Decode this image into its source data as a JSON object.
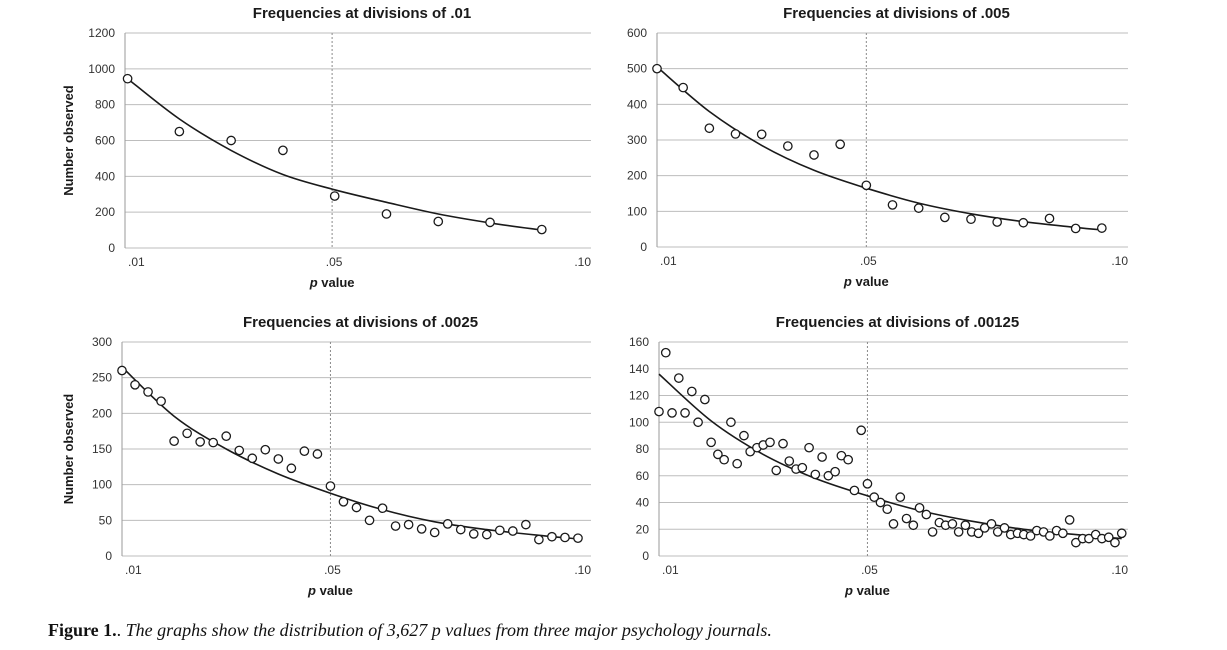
{
  "chart_data": [
    {
      "type": "scatter",
      "title": "Frequencies at divisions of .01",
      "ylabel": "Number observed",
      "xlabel_italic": "p",
      "xlabel_rest": " value",
      "ylim": [
        0,
        1200
      ],
      "yticks": [
        0,
        200,
        400,
        600,
        800,
        1000,
        1200
      ],
      "xlim": [
        0.01,
        0.1
      ],
      "xticks": [
        {
          "value": 0.01,
          "label": ".01"
        },
        {
          "value": 0.05,
          "label": ".05"
        },
        {
          "value": 0.1,
          "label": ".10"
        }
      ],
      "reference_x": 0.05,
      "points": [
        {
          "x": 0.0105,
          "y": 945
        },
        {
          "x": 0.0205,
          "y": 650
        },
        {
          "x": 0.0305,
          "y": 600
        },
        {
          "x": 0.0405,
          "y": 545
        },
        {
          "x": 0.0505,
          "y": 290
        },
        {
          "x": 0.0605,
          "y": 190
        },
        {
          "x": 0.0705,
          "y": 148
        },
        {
          "x": 0.0805,
          "y": 143
        },
        {
          "x": 0.0905,
          "y": 103
        }
      ],
      "fit": [
        {
          "x": 0.0105,
          "y": 945
        },
        {
          "x": 0.0205,
          "y": 720
        },
        {
          "x": 0.0305,
          "y": 545
        },
        {
          "x": 0.0405,
          "y": 410
        },
        {
          "x": 0.0505,
          "y": 325
        },
        {
          "x": 0.0605,
          "y": 255
        },
        {
          "x": 0.0705,
          "y": 190
        },
        {
          "x": 0.0805,
          "y": 140
        },
        {
          "x": 0.0905,
          "y": 100
        }
      ]
    },
    {
      "type": "scatter",
      "title": "Frequencies at divisions of .005",
      "ylabel": "",
      "xlabel_italic": "p",
      "xlabel_rest": " value",
      "ylim": [
        0,
        600
      ],
      "yticks": [
        0,
        100,
        200,
        300,
        400,
        500,
        600
      ],
      "xlim": [
        0.01,
        0.1
      ],
      "xticks": [
        {
          "value": 0.01,
          "label": ".01"
        },
        {
          "value": 0.05,
          "label": ".05"
        },
        {
          "value": 0.1,
          "label": ".10"
        }
      ],
      "reference_x": 0.05,
      "points": [
        {
          "x": 0.01,
          "y": 500
        },
        {
          "x": 0.015,
          "y": 447
        },
        {
          "x": 0.02,
          "y": 333
        },
        {
          "x": 0.025,
          "y": 317
        },
        {
          "x": 0.03,
          "y": 316
        },
        {
          "x": 0.035,
          "y": 283
        },
        {
          "x": 0.04,
          "y": 258
        },
        {
          "x": 0.045,
          "y": 288
        },
        {
          "x": 0.05,
          "y": 173
        },
        {
          "x": 0.055,
          "y": 118
        },
        {
          "x": 0.06,
          "y": 109
        },
        {
          "x": 0.065,
          "y": 83
        },
        {
          "x": 0.07,
          "y": 78
        },
        {
          "x": 0.075,
          "y": 70
        },
        {
          "x": 0.08,
          "y": 68
        },
        {
          "x": 0.085,
          "y": 80
        },
        {
          "x": 0.09,
          "y": 52
        },
        {
          "x": 0.095,
          "y": 53
        }
      ],
      "fit": [
        {
          "x": 0.01,
          "y": 505
        },
        {
          "x": 0.02,
          "y": 380
        },
        {
          "x": 0.03,
          "y": 285
        },
        {
          "x": 0.04,
          "y": 215
        },
        {
          "x": 0.05,
          "y": 165
        },
        {
          "x": 0.06,
          "y": 123
        },
        {
          "x": 0.07,
          "y": 93
        },
        {
          "x": 0.08,
          "y": 71
        },
        {
          "x": 0.09,
          "y": 55
        },
        {
          "x": 0.095,
          "y": 48
        }
      ]
    },
    {
      "type": "scatter",
      "title": "Frequencies at divisions of .0025",
      "ylabel": "Number observed",
      "xlabel_italic": "p",
      "xlabel_rest": " value",
      "ylim": [
        0,
        300
      ],
      "yticks": [
        0,
        50,
        100,
        150,
        200,
        250,
        300
      ],
      "xlim": [
        0.01,
        0.1
      ],
      "xticks": [
        {
          "value": 0.01,
          "label": ".01"
        },
        {
          "value": 0.05,
          "label": ".05"
        },
        {
          "value": 0.1,
          "label": ".10"
        }
      ],
      "reference_x": 0.05,
      "points": [
        {
          "x": 0.01,
          "y": 260
        },
        {
          "x": 0.0125,
          "y": 240
        },
        {
          "x": 0.015,
          "y": 230
        },
        {
          "x": 0.0175,
          "y": 217
        },
        {
          "x": 0.02,
          "y": 161
        },
        {
          "x": 0.0225,
          "y": 172
        },
        {
          "x": 0.025,
          "y": 160
        },
        {
          "x": 0.0275,
          "y": 159
        },
        {
          "x": 0.03,
          "y": 168
        },
        {
          "x": 0.0325,
          "y": 148
        },
        {
          "x": 0.035,
          "y": 137
        },
        {
          "x": 0.0375,
          "y": 149
        },
        {
          "x": 0.04,
          "y": 136
        },
        {
          "x": 0.0425,
          "y": 123
        },
        {
          "x": 0.045,
          "y": 147
        },
        {
          "x": 0.0475,
          "y": 143
        },
        {
          "x": 0.05,
          "y": 98
        },
        {
          "x": 0.0525,
          "y": 76
        },
        {
          "x": 0.055,
          "y": 68
        },
        {
          "x": 0.0575,
          "y": 50
        },
        {
          "x": 0.06,
          "y": 67
        },
        {
          "x": 0.0625,
          "y": 42
        },
        {
          "x": 0.065,
          "y": 44
        },
        {
          "x": 0.0675,
          "y": 38
        },
        {
          "x": 0.07,
          "y": 33
        },
        {
          "x": 0.0725,
          "y": 45
        },
        {
          "x": 0.075,
          "y": 37
        },
        {
          "x": 0.0775,
          "y": 31
        },
        {
          "x": 0.08,
          "y": 30
        },
        {
          "x": 0.0825,
          "y": 36
        },
        {
          "x": 0.085,
          "y": 35
        },
        {
          "x": 0.0875,
          "y": 44
        },
        {
          "x": 0.09,
          "y": 23
        },
        {
          "x": 0.0925,
          "y": 27
        },
        {
          "x": 0.095,
          "y": 26
        },
        {
          "x": 0.0975,
          "y": 25
        }
      ],
      "fit": [
        {
          "x": 0.01,
          "y": 265
        },
        {
          "x": 0.02,
          "y": 196
        },
        {
          "x": 0.03,
          "y": 150
        },
        {
          "x": 0.04,
          "y": 115
        },
        {
          "x": 0.05,
          "y": 88
        },
        {
          "x": 0.06,
          "y": 65
        },
        {
          "x": 0.07,
          "y": 48
        },
        {
          "x": 0.08,
          "y": 37
        },
        {
          "x": 0.09,
          "y": 29
        },
        {
          "x": 0.0975,
          "y": 24
        }
      ]
    },
    {
      "type": "scatter",
      "title": "Frequencies at divisions of .00125",
      "ylabel": "",
      "xlabel_italic": "p",
      "xlabel_rest": " value",
      "ylim": [
        0,
        160
      ],
      "yticks": [
        0,
        20,
        40,
        60,
        80,
        100,
        120,
        140,
        160
      ],
      "xlim": [
        0.01,
        0.1
      ],
      "xticks": [
        {
          "value": 0.01,
          "label": ".01"
        },
        {
          "value": 0.05,
          "label": ".05"
        },
        {
          "value": 0.1,
          "label": ".10"
        }
      ],
      "reference_x": 0.05,
      "points": [
        {
          "x": 0.01,
          "y": 108
        },
        {
          "x": 0.0113,
          "y": 152
        },
        {
          "x": 0.0125,
          "y": 107
        },
        {
          "x": 0.0138,
          "y": 133
        },
        {
          "x": 0.015,
          "y": 107
        },
        {
          "x": 0.0163,
          "y": 123
        },
        {
          "x": 0.0175,
          "y": 100
        },
        {
          "x": 0.0188,
          "y": 117
        },
        {
          "x": 0.02,
          "y": 85
        },
        {
          "x": 0.0213,
          "y": 76
        },
        {
          "x": 0.0225,
          "y": 72
        },
        {
          "x": 0.0238,
          "y": 100
        },
        {
          "x": 0.025,
          "y": 69
        },
        {
          "x": 0.0263,
          "y": 90
        },
        {
          "x": 0.0275,
          "y": 78
        },
        {
          "x": 0.0288,
          "y": 81
        },
        {
          "x": 0.03,
          "y": 83
        },
        {
          "x": 0.0313,
          "y": 85
        },
        {
          "x": 0.0325,
          "y": 64
        },
        {
          "x": 0.0338,
          "y": 84
        },
        {
          "x": 0.035,
          "y": 71
        },
        {
          "x": 0.0363,
          "y": 65
        },
        {
          "x": 0.0375,
          "y": 66
        },
        {
          "x": 0.0388,
          "y": 81
        },
        {
          "x": 0.04,
          "y": 61
        },
        {
          "x": 0.0413,
          "y": 74
        },
        {
          "x": 0.0425,
          "y": 60
        },
        {
          "x": 0.0438,
          "y": 63
        },
        {
          "x": 0.045,
          "y": 75
        },
        {
          "x": 0.0463,
          "y": 72
        },
        {
          "x": 0.0475,
          "y": 49
        },
        {
          "x": 0.0488,
          "y": 94
        },
        {
          "x": 0.05,
          "y": 54
        },
        {
          "x": 0.0513,
          "y": 44
        },
        {
          "x": 0.0525,
          "y": 40
        },
        {
          "x": 0.0538,
          "y": 35
        },
        {
          "x": 0.055,
          "y": 24
        },
        {
          "x": 0.0563,
          "y": 44
        },
        {
          "x": 0.0575,
          "y": 28
        },
        {
          "x": 0.0588,
          "y": 23
        },
        {
          "x": 0.06,
          "y": 36
        },
        {
          "x": 0.0613,
          "y": 31
        },
        {
          "x": 0.0625,
          "y": 18
        },
        {
          "x": 0.0638,
          "y": 25
        },
        {
          "x": 0.065,
          "y": 23
        },
        {
          "x": 0.0663,
          "y": 24
        },
        {
          "x": 0.0675,
          "y": 18
        },
        {
          "x": 0.0688,
          "y": 23
        },
        {
          "x": 0.07,
          "y": 18
        },
        {
          "x": 0.0713,
          "y": 17
        },
        {
          "x": 0.0725,
          "y": 21
        },
        {
          "x": 0.0738,
          "y": 24
        },
        {
          "x": 0.075,
          "y": 18
        },
        {
          "x": 0.0763,
          "y": 21
        },
        {
          "x": 0.0775,
          "y": 16
        },
        {
          "x": 0.0788,
          "y": 17
        },
        {
          "x": 0.08,
          "y": 16
        },
        {
          "x": 0.0813,
          "y": 15
        },
        {
          "x": 0.0825,
          "y": 19
        },
        {
          "x": 0.0838,
          "y": 18
        },
        {
          "x": 0.085,
          "y": 15
        },
        {
          "x": 0.0863,
          "y": 19
        },
        {
          "x": 0.0875,
          "y": 17
        },
        {
          "x": 0.0888,
          "y": 27
        },
        {
          "x": 0.09,
          "y": 10
        },
        {
          "x": 0.0913,
          "y": 13
        },
        {
          "x": 0.0925,
          "y": 13
        },
        {
          "x": 0.0938,
          "y": 16
        },
        {
          "x": 0.095,
          "y": 13
        },
        {
          "x": 0.0963,
          "y": 14
        },
        {
          "x": 0.0975,
          "y": 10
        },
        {
          "x": 0.0988,
          "y": 17
        }
      ],
      "fit": [
        {
          "x": 0.01,
          "y": 136
        },
        {
          "x": 0.02,
          "y": 101
        },
        {
          "x": 0.03,
          "y": 76
        },
        {
          "x": 0.04,
          "y": 58
        },
        {
          "x": 0.05,
          "y": 45
        },
        {
          "x": 0.06,
          "y": 34
        },
        {
          "x": 0.07,
          "y": 26
        },
        {
          "x": 0.08,
          "y": 20
        },
        {
          "x": 0.09,
          "y": 16
        },
        {
          "x": 0.0988,
          "y": 13
        }
      ]
    }
  ],
  "caption": {
    "lead": "Figure 1.",
    "sep": ". ",
    "body": "The graphs show the distribution of 3,627 p values from three major psychology journals."
  }
}
